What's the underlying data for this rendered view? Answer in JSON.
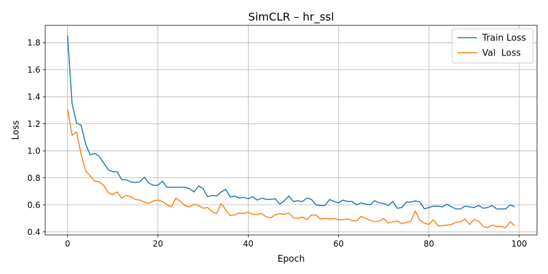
{
  "chart_data": {
    "type": "line",
    "title": "SimCLR – hr_ssl",
    "xlabel": "Epoch",
    "ylabel": "Loss",
    "xlim": [
      -4.95,
      103.95
    ],
    "ylim": [
      0.377,
      1.929
    ],
    "xticks": [
      0,
      20,
      40,
      60,
      80,
      100
    ],
    "yticks": [
      0.4,
      0.6,
      0.8,
      1.0,
      1.2,
      1.4,
      1.6,
      1.8
    ],
    "xtick_labels": [
      "0",
      "20",
      "40",
      "60",
      "80",
      "100"
    ],
    "ytick_labels": [
      "0.4",
      "0.6",
      "0.8",
      "1.0",
      "1.2",
      "1.4",
      "1.6",
      "1.8"
    ],
    "grid": true,
    "legend_position": "top-right",
    "series": [
      {
        "name": "Train Loss",
        "color": "#1f77b4",
        "values": [
          1.855,
          1.35,
          1.205,
          1.19,
          1.05,
          0.97,
          0.98,
          0.96,
          0.91,
          0.86,
          0.845,
          0.845,
          0.785,
          0.785,
          0.77,
          0.765,
          0.77,
          0.805,
          0.76,
          0.745,
          0.745,
          0.775,
          0.73,
          0.73,
          0.73,
          0.73,
          0.73,
          0.72,
          0.695,
          0.74,
          0.72,
          0.66,
          0.67,
          0.665,
          0.695,
          0.715,
          0.66,
          0.665,
          0.65,
          0.655,
          0.645,
          0.66,
          0.635,
          0.65,
          0.64,
          0.64,
          0.645,
          0.605,
          0.63,
          0.665,
          0.625,
          0.63,
          0.625,
          0.65,
          0.64,
          0.6,
          0.595,
          0.595,
          0.64,
          0.625,
          0.615,
          0.635,
          0.625,
          0.625,
          0.6,
          0.615,
          0.605,
          0.6,
          0.63,
          0.615,
          0.61,
          0.595,
          0.625,
          0.575,
          0.58,
          0.62,
          0.62,
          0.63,
          0.62,
          0.57,
          0.58,
          0.59,
          0.59,
          0.585,
          0.605,
          0.585,
          0.57,
          0.57,
          0.59,
          0.585,
          0.58,
          0.595,
          0.575,
          0.58,
          0.595,
          0.57,
          0.57,
          0.57,
          0.6,
          0.585
        ]
      },
      {
        "name": "Val  Loss",
        "color": "#ff7f0e",
        "values": [
          1.31,
          1.115,
          1.14,
          0.975,
          0.85,
          0.815,
          0.775,
          0.77,
          0.745,
          0.69,
          0.675,
          0.695,
          0.65,
          0.67,
          0.66,
          0.64,
          0.635,
          0.62,
          0.61,
          0.63,
          0.635,
          0.625,
          0.6,
          0.585,
          0.65,
          0.625,
          0.595,
          0.585,
          0.605,
          0.595,
          0.575,
          0.58,
          0.55,
          0.535,
          0.61,
          0.565,
          0.52,
          0.525,
          0.54,
          0.535,
          0.545,
          0.53,
          0.53,
          0.535,
          0.51,
          0.505,
          0.525,
          0.535,
          0.53,
          0.54,
          0.505,
          0.5,
          0.51,
          0.49,
          0.525,
          0.525,
          0.495,
          0.5,
          0.495,
          0.5,
          0.49,
          0.49,
          0.495,
          0.485,
          0.48,
          0.515,
          0.5,
          0.485,
          0.475,
          0.48,
          0.5,
          0.465,
          0.475,
          0.48,
          0.46,
          0.47,
          0.48,
          0.555,
          0.485,
          0.465,
          0.455,
          0.49,
          0.445,
          0.445,
          0.45,
          0.455,
          0.47,
          0.475,
          0.495,
          0.455,
          0.49,
          0.48,
          0.44,
          0.43,
          0.45,
          0.44,
          0.44,
          0.43,
          0.475,
          0.445
        ]
      }
    ]
  }
}
